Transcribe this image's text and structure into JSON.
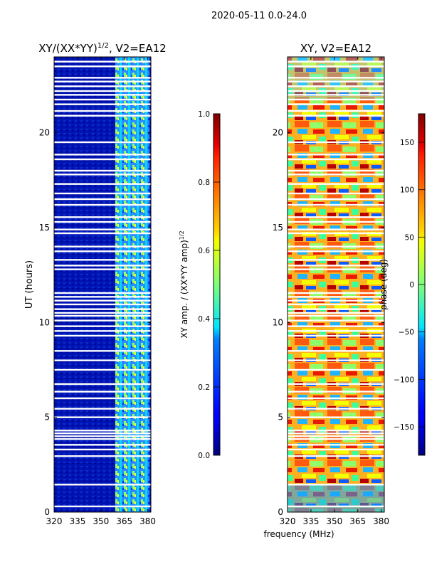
{
  "suptitle": "2020-05-11 0.0-24.0",
  "chart_data": [
    {
      "type": "heatmap",
      "title_main": "XY/(XX*YY)",
      "title_exp": "1/2",
      "title_suffix": ", V2=EA12",
      "xlabel": "",
      "ylabel": "UT (hours)",
      "xlim": [
        320,
        382
      ],
      "ylim": [
        0,
        24
      ],
      "xticks": [
        320,
        335,
        350,
        365,
        380
      ],
      "yticks": [
        0,
        5,
        10,
        15,
        20
      ],
      "colorbar": {
        "label_main": "XY amp. / (XX*YY amp)",
        "label_exp": "1/2",
        "range": [
          0.0,
          1.0
        ],
        "ticks": [
          "0.0",
          "0.2",
          "0.4",
          "0.6",
          "0.8",
          "1.0"
        ],
        "tick_values": [
          0.0,
          0.2,
          0.4,
          0.6,
          0.8,
          1.0
        ],
        "colormap": "jet"
      },
      "gaps_ut": [
        0.3,
        1.45,
        2.95,
        3.3,
        3.55,
        3.85,
        4.0,
        4.15,
        4.3,
        5.0,
        5.45,
        6.0,
        6.35,
        6.75,
        7.5,
        8.0,
        8.5,
        9.3,
        9.55,
        9.8,
        10.1,
        10.35,
        10.5,
        10.7,
        10.95,
        11.15,
        11.35,
        11.55,
        12.8,
        13.0,
        13.3,
        13.75,
        14.0,
        14.7,
        14.9,
        15.3,
        15.55,
        16.2,
        16.5,
        16.8,
        17.3,
        17.8,
        18.0,
        18.6,
        18.85,
        19.5,
        20.9,
        21.15,
        21.5,
        21.75,
        22.0,
        22.2,
        22.45,
        22.7,
        22.9,
        23.5,
        23.75
      ]
    },
    {
      "type": "heatmap",
      "title_main": "XY, V2=EA12",
      "title_exp": "",
      "title_suffix": "",
      "xlabel": "frequency (MHz)",
      "ylabel": "",
      "xlim": [
        320,
        382
      ],
      "ylim": [
        0,
        24
      ],
      "xticks": [
        320,
        335,
        350,
        365,
        380
      ],
      "yticks": [
        0,
        5,
        10,
        15,
        20
      ],
      "colorbar": {
        "label_main": "phase (deg)",
        "label_exp": "",
        "range": [
          -180,
          180
        ],
        "ticks": [
          "−150",
          "−100",
          "−50",
          "0",
          "50",
          "100",
          "150"
        ],
        "tick_values": [
          -150,
          -100,
          -50,
          0,
          50,
          100,
          150
        ],
        "colormap": "jet"
      },
      "gaps_ut": [
        0.3,
        1.45,
        2.95,
        3.3,
        3.55,
        3.85,
        4.0,
        4.15,
        4.3,
        5.0,
        5.45,
        6.0,
        6.35,
        6.75,
        7.5,
        8.0,
        8.5,
        9.3,
        9.55,
        9.8,
        10.1,
        10.35,
        10.5,
        10.7,
        10.95,
        11.15,
        11.35,
        11.55,
        12.8,
        13.0,
        13.3,
        13.75,
        14.0,
        14.7,
        14.9,
        15.3,
        15.55,
        16.2,
        16.5,
        16.8,
        17.3,
        17.8,
        18.0,
        18.6,
        18.85,
        19.5,
        20.9,
        21.15,
        21.5,
        21.75,
        22.0,
        22.2,
        22.45,
        22.7,
        22.9,
        23.5,
        23.75
      ]
    }
  ]
}
